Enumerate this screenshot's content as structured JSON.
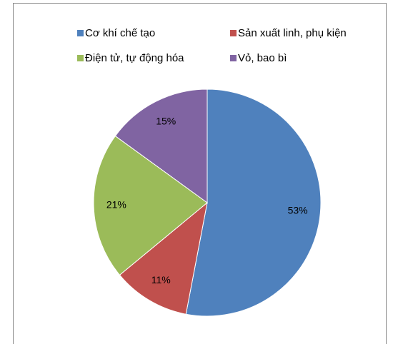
{
  "chart_data": {
    "type": "pie",
    "categories": [
      "Cơ khí chế tạo",
      "Sản xuất linh, phụ kiện",
      "Điện tử, tự động hóa",
      "Vỏ, bao bì"
    ],
    "values": [
      53,
      11,
      21,
      15
    ],
    "value_labels": [
      "53%",
      "11%",
      "21%",
      "15%"
    ],
    "colors": [
      "#4f81bd",
      "#c0504d",
      "#9bbb59",
      "#8064a2"
    ],
    "legend": "top"
  }
}
